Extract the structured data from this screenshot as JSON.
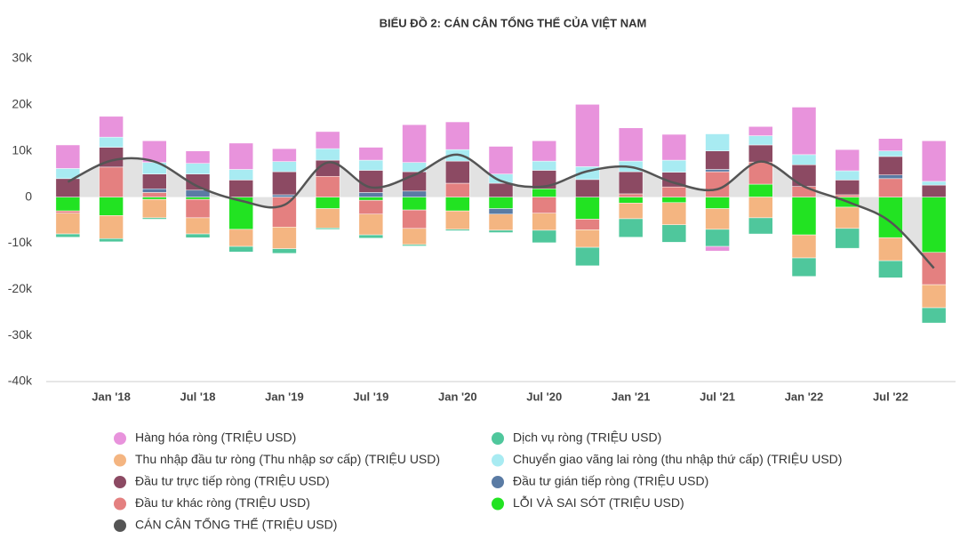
{
  "chart_data": {
    "type": "stacked_bar_line",
    "title": "BIỂU ĐỒ 2: CÁN CÂN TỔNG THỂ CỦA VIỆT NAM",
    "categories": [
      null,
      "Jan '18",
      null,
      "Jul '18",
      null,
      "Jan '19",
      null,
      "Jul '19",
      null,
      "Jan '20",
      null,
      "Jul '20",
      null,
      "Jan '21",
      null,
      "Jul '21",
      null,
      "Jan '22",
      null,
      "Jul '22",
      null
    ],
    "ylim": [
      -40000,
      30000
    ],
    "yticks": [
      {
        "value": -40000,
        "label": "-40k"
      },
      {
        "value": -30000,
        "label": "-30k"
      },
      {
        "value": -20000,
        "label": "-20k"
      },
      {
        "value": -10000,
        "label": "-10k"
      },
      0,
      {
        "value": 10000,
        "label": "10k"
      },
      {
        "value": 20000,
        "label": "20k"
      },
      {
        "value": 30000,
        "label": "30k"
      }
    ],
    "grid": false,
    "series": [
      {
        "name": "Hàng hóa ròng (TRIỆU USD)",
        "color": "#e893dc",
        "values": [
          5100,
          4500,
          4700,
          2700,
          5700,
          2800,
          3700,
          2800,
          8200,
          6000,
          6000,
          4400,
          13500,
          7200,
          5600,
          -1000,
          2000,
          10300,
          4600,
          2700,
          8800
        ]
      },
      {
        "name": "Dịch vụ ròng (TRIỆU USD)",
        "color": "#4fc79c",
        "values": [
          -700,
          -700,
          -300,
          -800,
          -1200,
          -1000,
          -300,
          -700,
          -300,
          -300,
          -500,
          -2700,
          -4000,
          -4000,
          -3800,
          -3700,
          -3500,
          -4000,
          -4300,
          -3700,
          -3300
        ]
      },
      {
        "name": "Thu nhập đầu tư ròng (Thu nhập sơ cấp) (TRIỆU USD)",
        "color": "#f4b581",
        "values": [
          -4500,
          -5000,
          -4000,
          -3500,
          -3700,
          -4700,
          -4200,
          -4500,
          -3500,
          -4000,
          -3500,
          -3700,
          -3800,
          -3400,
          -4800,
          -4500,
          -4500,
          -5000,
          -4600,
          -5000,
          -5000
        ]
      },
      {
        "name": "Chuyển giao vãng lai ròng (thu nhập thứ cấp) (TRIỆU USD)",
        "color": "#a8ebf2",
        "values": [
          2200,
          2200,
          2500,
          2300,
          2300,
          2200,
          2500,
          2200,
          2000,
          2500,
          2000,
          2000,
          2800,
          2300,
          2600,
          3700,
          2000,
          2200,
          2000,
          1200,
          800
        ]
      },
      {
        "name": "Đầu tư trực tiếp ròng (TRIỆU USD)",
        "color": "#8c4a63",
        "values": [
          4000,
          4300,
          3200,
          3500,
          3700,
          5000,
          3500,
          4800,
          4200,
          4800,
          3000,
          4000,
          3800,
          4800,
          3200,
          4000,
          3700,
          4700,
          3200,
          4000,
          2600
        ]
      },
      {
        "name": "Đầu tư gián tiếp ròng (TRIỆU USD)",
        "color": "#5a7ba4",
        "values": [
          0,
          0,
          800,
          1500,
          0,
          500,
          0,
          1000,
          1300,
          0,
          -1200,
          0,
          0,
          0,
          0,
          500,
          0,
          0,
          0,
          800,
          0
        ]
      },
      {
        "name": "Đầu tư khác ròng (TRIỆU USD)",
        "color": "#e48080",
        "values": [
          -500,
          6500,
          1000,
          -4000,
          0,
          -6500,
          4500,
          -3000,
          -4000,
          3000,
          0,
          -3500,
          -2300,
          700,
          2200,
          5500,
          4800,
          2300,
          500,
          4000,
          -7000
        ]
      },
      {
        "name": "LỖI VÀ SAI SÓT (TRIỆU USD)",
        "color": "#22e322",
        "values": [
          -3000,
          -4000,
          -500,
          -500,
          -7000,
          0,
          -2500,
          -700,
          -2800,
          -3000,
          -2500,
          1800,
          -4800,
          -1300,
          -1200,
          -2500,
          2800,
          -8200,
          -2200,
          -8800,
          -12000
        ]
      },
      {
        "name": "CÁN CÂN TỔNG THỂ (TRIỆU USD)",
        "color": "#555555",
        "line": true,
        "values": [
          3300,
          7900,
          7700,
          2300,
          -800,
          -1700,
          7500,
          2100,
          4800,
          9200,
          3500,
          2300,
          5600,
          6500,
          3100,
          1700,
          7700,
          2300,
          -1000,
          -5400,
          -15400
        ]
      }
    ]
  }
}
